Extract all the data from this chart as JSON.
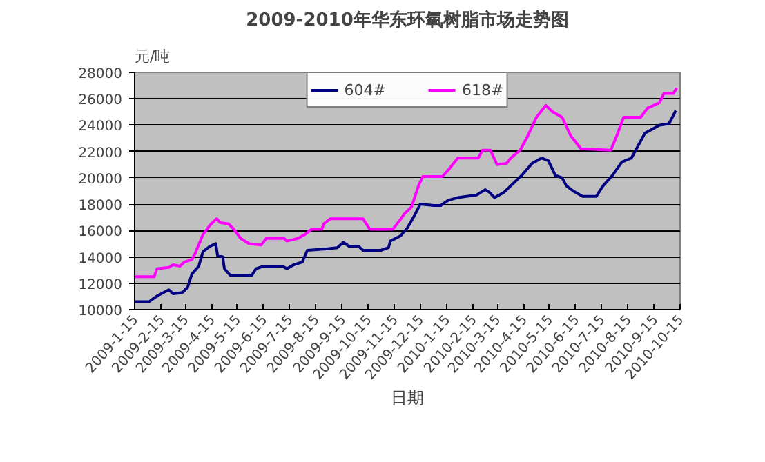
{
  "chart_data": {
    "type": "line",
    "title": "2009-2010年华东环氧树脂市场走势图",
    "xlabel": "日期",
    "ylabel": "元/吨",
    "xlim": [
      "2009-01-15",
      "2010-10-15"
    ],
    "xticks": [
      {
        "value": "2009-01-15",
        "label": "2009-1-15"
      },
      {
        "value": "2009-02-15",
        "label": "2009-2-15"
      },
      {
        "value": "2009-03-15",
        "label": "2009-3-15"
      },
      {
        "value": "2009-04-15",
        "label": "2009-4-15"
      },
      {
        "value": "2009-05-15",
        "label": "2009-5-15"
      },
      {
        "value": "2009-06-15",
        "label": "2009-6-15"
      },
      {
        "value": "2009-07-15",
        "label": "2009-7-15"
      },
      {
        "value": "2009-08-15",
        "label": "2009-8-15"
      },
      {
        "value": "2009-09-15",
        "label": "2009-9-15"
      },
      {
        "value": "2009-10-15",
        "label": "2009-10-15"
      },
      {
        "value": "2009-11-15",
        "label": "2009-11-15"
      },
      {
        "value": "2009-12-15",
        "label": "2009-12-15"
      },
      {
        "value": "2010-01-15",
        "label": "2010-1-15"
      },
      {
        "value": "2010-02-15",
        "label": "2010-2-15"
      },
      {
        "value": "2010-03-15",
        "label": "2010-3-15"
      },
      {
        "value": "2010-04-15",
        "label": "2010-4-15"
      },
      {
        "value": "2010-05-15",
        "label": "2010-5-15"
      },
      {
        "value": "2010-06-15",
        "label": "2010-6-15"
      },
      {
        "value": "2010-07-15",
        "label": "2010-7-15"
      },
      {
        "value": "2010-08-15",
        "label": "2010-8-15"
      },
      {
        "value": "2010-09-15",
        "label": "2010-9-15"
      },
      {
        "value": "2010-10-15",
        "label": "2010-10-15"
      }
    ],
    "ylim": [
      10000,
      28000
    ],
    "yticks": [
      10000,
      12000,
      14000,
      16000,
      18000,
      20000,
      22000,
      24000,
      26000,
      28000
    ],
    "grid": "y",
    "legend": "top",
    "marker": "none",
    "line_style": "solid",
    "series": [
      {
        "name": "604#",
        "color": "#000080",
        "x": [
          "2009-01-15",
          "2009-02-01",
          "2009-02-05",
          "2009-02-12",
          "2009-02-24",
          "2009-03-01",
          "2009-03-12",
          "2009-03-18",
          "2009-03-23",
          "2009-03-31",
          "2009-04-05",
          "2009-04-13",
          "2009-04-20",
          "2009-04-22",
          "2009-04-28",
          "2009-04-30",
          "2009-05-07",
          "2009-05-21",
          "2009-06-01",
          "2009-06-06",
          "2009-06-15",
          "2009-07-07",
          "2009-07-12",
          "2009-07-20",
          "2009-07-30",
          "2009-08-05",
          "2009-08-27",
          "2009-09-09",
          "2009-09-16",
          "2009-09-23",
          "2009-10-04",
          "2009-10-09",
          "2009-10-30",
          "2009-11-08",
          "2009-11-10",
          "2009-11-22",
          "2009-11-30",
          "2009-12-08",
          "2009-12-15",
          "2009-12-31",
          "2010-01-08",
          "2010-01-17",
          "2010-01-28",
          "2010-02-19",
          "2010-03-01",
          "2010-03-06",
          "2010-03-12",
          "2010-03-23",
          "2010-03-31",
          "2010-04-13",
          "2010-04-25",
          "2010-05-06",
          "2010-05-14",
          "2010-05-22",
          "2010-05-30",
          "2010-06-04",
          "2010-06-12",
          "2010-06-23",
          "2010-07-09",
          "2010-07-17",
          "2010-07-28",
          "2010-08-08",
          "2010-08-19",
          "2010-08-25",
          "2010-09-04",
          "2010-09-21",
          "2010-10-02",
          "2010-10-10"
        ],
        "values": [
          10600,
          10600,
          10800,
          11100,
          11500,
          11200,
          11300,
          11700,
          12700,
          13300,
          14400,
          14800,
          15000,
          14100,
          14000,
          13100,
          12600,
          12600,
          12600,
          13100,
          13300,
          13300,
          13100,
          13400,
          13600,
          14500,
          14600,
          14700,
          15100,
          14800,
          14800,
          14500,
          14500,
          14700,
          15200,
          15600,
          16200,
          17100,
          18000,
          17900,
          17900,
          18300,
          18500,
          18700,
          19100,
          18900,
          18500,
          18900,
          19400,
          20200,
          21100,
          21500,
          21300,
          20200,
          20000,
          19400,
          19000,
          18600,
          18600,
          19400,
          20200,
          21200,
          21500,
          22200,
          23400,
          24000,
          24100,
          25100
        ]
      },
      {
        "name": "618#",
        "color": "#ff00ff",
        "x": [
          "2009-01-15",
          "2009-02-07",
          "2009-02-10",
          "2009-02-24",
          "2009-03-01",
          "2009-03-09",
          "2009-03-14",
          "2009-03-23",
          "2009-03-27",
          "2009-04-05",
          "2009-04-13",
          "2009-04-21",
          "2009-04-25",
          "2009-05-05",
          "2009-05-11",
          "2009-05-19",
          "2009-05-29",
          "2009-06-12",
          "2009-06-18",
          "2009-07-09",
          "2009-07-12",
          "2009-07-25",
          "2009-08-02",
          "2009-08-10",
          "2009-08-22",
          "2009-08-24",
          "2009-09-01",
          "2009-10-09",
          "2009-10-17",
          "2009-11-13",
          "2009-11-19",
          "2009-11-27",
          "2009-12-05",
          "2009-12-13",
          "2009-12-18",
          "2010-01-10",
          "2010-01-17",
          "2010-01-28",
          "2010-02-21",
          "2010-02-26",
          "2010-03-07",
          "2010-03-15",
          "2010-03-26",
          "2010-03-31",
          "2010-04-11",
          "2010-04-20",
          "2010-04-30",
          "2010-05-11",
          "2010-05-19",
          "2010-05-30",
          "2010-06-09",
          "2010-06-21",
          "2010-07-26",
          "2010-08-02",
          "2010-08-10",
          "2010-08-30",
          "2010-09-07",
          "2010-09-21",
          "2010-09-26",
          "2010-10-07",
          "2010-10-11"
        ],
        "values": [
          12500,
          12500,
          13100,
          13200,
          13400,
          13300,
          13600,
          13800,
          14300,
          15700,
          16400,
          16900,
          16600,
          16500,
          16100,
          15400,
          15000,
          14900,
          15400,
          15400,
          15200,
          15400,
          15700,
          16100,
          16100,
          16500,
          16900,
          16900,
          16100,
          16100,
          16600,
          17300,
          17800,
          19400,
          20100,
          20100,
          20600,
          21500,
          21500,
          22100,
          22100,
          21000,
          21100,
          21500,
          22100,
          23200,
          24600,
          25500,
          25000,
          24600,
          23200,
          22200,
          22100,
          23200,
          24600,
          24600,
          25300,
          25700,
          26400,
          26400,
          26800
        ]
      }
    ]
  }
}
